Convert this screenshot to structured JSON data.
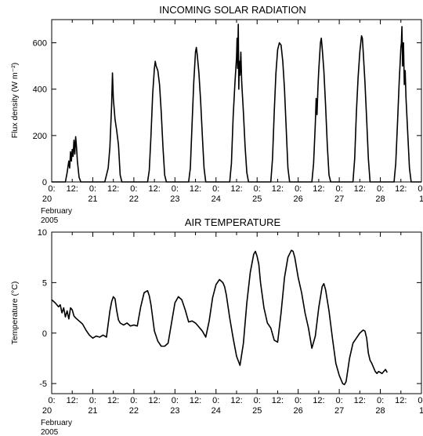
{
  "chart_data": [
    {
      "type": "line",
      "title": "INCOMING SOLAR RADIATION",
      "ylabel": "Flux density (W m⁻²)",
      "xlabel": "February 2005",
      "x_start_label": "February",
      "x_start_year": "2005",
      "xlim": [
        "2005-02-20 00:00",
        "2005-03-01 00:00"
      ],
      "ylim": [
        0,
        700
      ],
      "yticks": [
        0,
        200,
        400,
        600
      ],
      "x_hour_labels": [
        "0:",
        "12:",
        "0:",
        "12:",
        "0:",
        "12:",
        "0:",
        "12:",
        "0:",
        "12:",
        "0:",
        "12:",
        "0:",
        "12:",
        "0:",
        "12:",
        "0:",
        "12:",
        "0:"
      ],
      "x_day_labels": [
        "20",
        "21",
        "22",
        "23",
        "24",
        "25",
        "26",
        "27",
        "28",
        "1"
      ],
      "series": [
        {
          "points": [
            [
              0,
              0
            ],
            [
              8,
              0
            ],
            [
              9,
              40
            ],
            [
              10,
              90
            ],
            [
              10.5,
              60
            ],
            [
              11,
              130
            ],
            [
              11.5,
              90
            ],
            [
              12,
              140
            ],
            [
              12.5,
              110
            ],
            [
              13,
              180
            ],
            [
              13.5,
              120
            ],
            [
              14,
              195
            ],
            [
              14.5,
              150
            ],
            [
              15,
              90
            ],
            [
              16,
              20
            ],
            [
              17,
              0
            ],
            [
              31,
              0
            ],
            [
              32,
              30
            ],
            [
              33,
              60
            ],
            [
              34,
              150
            ],
            [
              35,
              330
            ],
            [
              35.5,
              470
            ],
            [
              36,
              360
            ],
            [
              37,
              270
            ],
            [
              38,
              220
            ],
            [
              39,
              160
            ],
            [
              40,
              30
            ],
            [
              41,
              0
            ],
            [
              56,
              0
            ],
            [
              57,
              50
            ],
            [
              58,
              200
            ],
            [
              59,
              380
            ],
            [
              60,
              490
            ],
            [
              60.5,
              520
            ],
            [
              61,
              500
            ],
            [
              62,
              480
            ],
            [
              63,
              420
            ],
            [
              64,
              300
            ],
            [
              65,
              150
            ],
            [
              66,
              30
            ],
            [
              67,
              0
            ],
            [
              80,
              0
            ],
            [
              81,
              60
            ],
            [
              82,
              250
            ],
            [
              83,
              430
            ],
            [
              84,
              560
            ],
            [
              84.5,
              580
            ],
            [
              85,
              550
            ],
            [
              86,
              470
            ],
            [
              87,
              350
            ],
            [
              88,
              200
            ],
            [
              89,
              60
            ],
            [
              90,
              0
            ],
            [
              104,
              0
            ],
            [
              105,
              80
            ],
            [
              106,
              280
            ],
            [
              107,
              420
            ],
            [
              108,
              540
            ],
            [
              108.3,
              620
            ],
            [
              108.6,
              490
            ],
            [
              109,
              680
            ],
            [
              109.3,
              400
            ],
            [
              109.6,
              520
            ],
            [
              110,
              460
            ],
            [
              110.5,
              560
            ],
            [
              111,
              430
            ],
            [
              112,
              300
            ],
            [
              113,
              150
            ],
            [
              114,
              40
            ],
            [
              115,
              0
            ],
            [
              128,
              0
            ],
            [
              129,
              100
            ],
            [
              130,
              300
            ],
            [
              131,
              470
            ],
            [
              132,
              570
            ],
            [
              133,
              600
            ],
            [
              134,
              590
            ],
            [
              135,
              520
            ],
            [
              136,
              400
            ],
            [
              137,
              230
            ],
            [
              138,
              60
            ],
            [
              139,
              0
            ],
            [
              152,
              0
            ],
            [
              153,
              80
            ],
            [
              154,
              250
            ],
            [
              154.5,
              360
            ],
            [
              155,
              290
            ],
            [
              155.5,
              400
            ],
            [
              156,
              480
            ],
            [
              157,
              600
            ],
            [
              157.5,
              620
            ],
            [
              158,
              580
            ],
            [
              159,
              480
            ],
            [
              160,
              330
            ],
            [
              161,
              160
            ],
            [
              162,
              30
            ],
            [
              163,
              0
            ],
            [
              176,
              0
            ],
            [
              177,
              100
            ],
            [
              178,
              300
            ],
            [
              179,
              450
            ],
            [
              180,
              560
            ],
            [
              181,
              630
            ],
            [
              181.5,
              620
            ],
            [
              182,
              560
            ],
            [
              183,
              430
            ],
            [
              184,
              270
            ],
            [
              185,
              100
            ],
            [
              186,
              0
            ],
            [
              200,
              0
            ],
            [
              201,
              80
            ],
            [
              202,
              250
            ],
            [
              203,
              430
            ],
            [
              204,
              580
            ],
            [
              204.3,
              600
            ],
            [
              204.6,
              670
            ],
            [
              205,
              500
            ],
            [
              205.5,
              600
            ],
            [
              206,
              420
            ],
            [
              206.5,
              480
            ],
            [
              207,
              360
            ],
            [
              208,
              210
            ],
            [
              209,
              60
            ],
            [
              210,
              0
            ],
            [
              216,
              0
            ]
          ]
        }
      ]
    },
    {
      "type": "line",
      "title": "AIR TEMPERATURE",
      "ylabel": "Temperature (°C)",
      "xlabel": "February 2005",
      "x_start_label": "February",
      "x_start_year": "2005",
      "xlim": [
        "2005-02-20 00:00",
        "2005-03-01 00:00"
      ],
      "ylim": [
        -6,
        10
      ],
      "yticks": [
        -5,
        0,
        5,
        10
      ],
      "x_hour_labels": [
        "0:",
        "12:",
        "0:",
        "12:",
        "0:",
        "12:",
        "0:",
        "12:",
        "0:",
        "12:",
        "0:",
        "12:",
        "0:",
        "12:",
        "0:",
        "12:",
        "0:",
        "12:",
        "0:"
      ],
      "x_day_labels": [
        "20",
        "21",
        "22",
        "23",
        "24",
        "25",
        "26",
        "27",
        "28",
        "1"
      ],
      "series": [
        {
          "points": [
            [
              0,
              3.3
            ],
            [
              2,
              3.0
            ],
            [
              4,
              2.6
            ],
            [
              5,
              2.8
            ],
            [
              6,
              2.0
            ],
            [
              7,
              2.5
            ],
            [
              8,
              1.6
            ],
            [
              9,
              2.2
            ],
            [
              10,
              1.4
            ],
            [
              11,
              2.5
            ],
            [
              12,
              2.3
            ],
            [
              13,
              1.7
            ],
            [
              14,
              1.5
            ],
            [
              16,
              1.2
            ],
            [
              18,
              0.9
            ],
            [
              20,
              0.3
            ],
            [
              22,
              -0.2
            ],
            [
              24,
              -0.5
            ],
            [
              26,
              -0.3
            ],
            [
              28,
              -0.4
            ],
            [
              30,
              -0.2
            ],
            [
              32,
              -0.4
            ],
            [
              34,
              2.2
            ],
            [
              35,
              3.1
            ],
            [
              36,
              3.6
            ],
            [
              37,
              3.4
            ],
            [
              38,
              2.2
            ],
            [
              39,
              1.3
            ],
            [
              40,
              1.0
            ],
            [
              42,
              0.8
            ],
            [
              44,
              1.0
            ],
            [
              46,
              0.7
            ],
            [
              48,
              0.8
            ],
            [
              50,
              0.7
            ],
            [
              52,
              2.6
            ],
            [
              54,
              4.0
            ],
            [
              56,
              4.2
            ],
            [
              57,
              3.7
            ],
            [
              58,
              2.8
            ],
            [
              59,
              1.5
            ],
            [
              60,
              0.2
            ],
            [
              62,
              -0.8
            ],
            [
              64,
              -1.3
            ],
            [
              66,
              -1.3
            ],
            [
              68,
              -1.0
            ],
            [
              70,
              1.0
            ],
            [
              72,
              3.0
            ],
            [
              74,
              3.6
            ],
            [
              76,
              3.3
            ],
            [
              78,
              2.3
            ],
            [
              80,
              1.1
            ],
            [
              82,
              1.2
            ],
            [
              84,
              1.0
            ],
            [
              86,
              0.6
            ],
            [
              88,
              0.2
            ],
            [
              90,
              -0.4
            ],
            [
              92,
              1.2
            ],
            [
              94,
              3.5
            ],
            [
              96,
              4.8
            ],
            [
              98,
              5.3
            ],
            [
              100,
              5.0
            ],
            [
              101,
              4.6
            ],
            [
              102,
              3.8
            ],
            [
              104,
              1.5
            ],
            [
              106,
              -0.5
            ],
            [
              108,
              -2.3
            ],
            [
              110,
              -3.2
            ],
            [
              112,
              -1.0
            ],
            [
              114,
              3.0
            ],
            [
              116,
              6.0
            ],
            [
              118,
              7.8
            ],
            [
              119,
              8.1
            ],
            [
              120,
              7.6
            ],
            [
              121,
              6.8
            ],
            [
              122,
              5.0
            ],
            [
              124,
              2.5
            ],
            [
              126,
              1.0
            ],
            [
              128,
              0.5
            ],
            [
              130,
              -0.7
            ],
            [
              132,
              -0.9
            ],
            [
              134,
              2.0
            ],
            [
              136,
              5.5
            ],
            [
              138,
              7.5
            ],
            [
              140,
              8.2
            ],
            [
              141,
              8.1
            ],
            [
              142,
              7.5
            ],
            [
              144,
              5.5
            ],
            [
              146,
              4.0
            ],
            [
              148,
              2.0
            ],
            [
              150,
              0.5
            ],
            [
              152,
              -1.5
            ],
            [
              154,
              -0.3
            ],
            [
              156,
              2.5
            ],
            [
              158,
              4.6
            ],
            [
              159,
              4.9
            ],
            [
              160,
              4.3
            ],
            [
              162,
              2.2
            ],
            [
              164,
              -0.5
            ],
            [
              166,
              -3.0
            ],
            [
              168,
              -4.2
            ],
            [
              170,
              -5.0
            ],
            [
              171,
              -5.1
            ],
            [
              172,
              -4.8
            ],
            [
              174,
              -2.5
            ],
            [
              176,
              -1.0
            ],
            [
              178,
              -0.5
            ],
            [
              180,
              0.0
            ],
            [
              182,
              0.3
            ],
            [
              183,
              0.2
            ],
            [
              184,
              -0.5
            ],
            [
              185,
              -2.0
            ],
            [
              186,
              -2.7
            ],
            [
              187,
              -3.0
            ],
            [
              188,
              -3.4
            ],
            [
              189,
              -3.8
            ],
            [
              190,
              -4.0
            ],
            [
              191,
              -3.8
            ],
            [
              193,
              -4.0
            ],
            [
              195,
              -3.6
            ],
            [
              196,
              -3.9
            ]
          ]
        }
      ]
    }
  ]
}
